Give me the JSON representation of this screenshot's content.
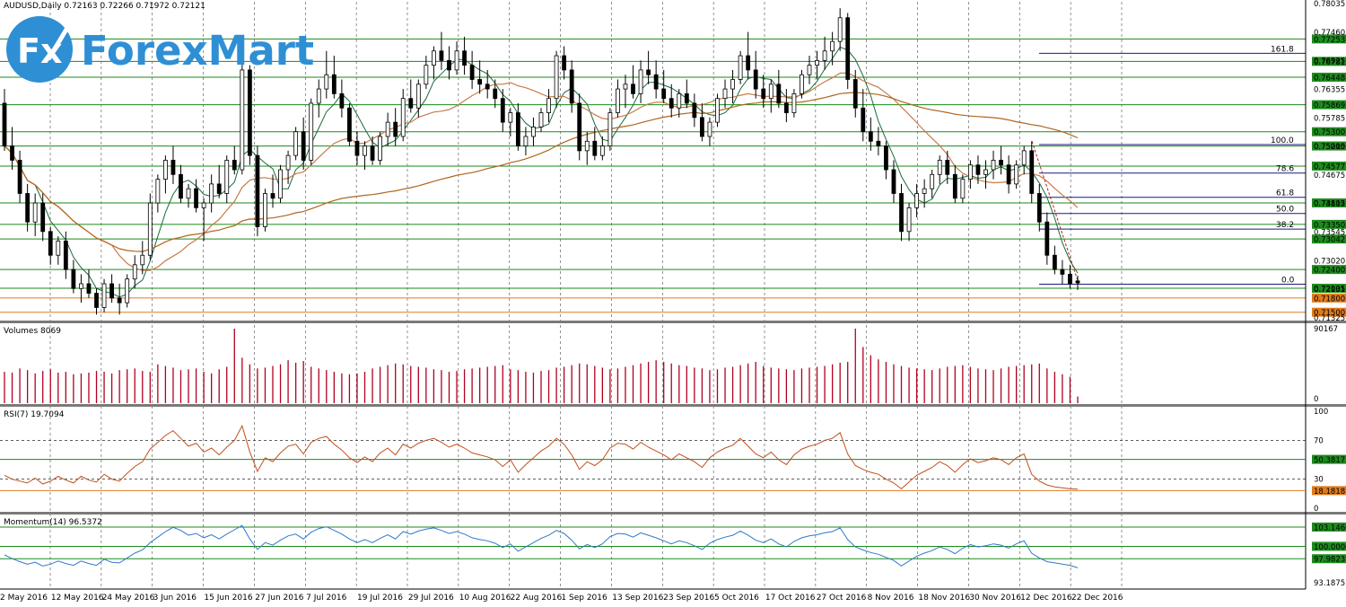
{
  "window": {
    "symbol_info": "AUDUSD,Daily  0.72163 0.72266 0.71972 0.72121"
  },
  "logo": {
    "mark_text": "Fx",
    "brand_text": "ForexMart",
    "color": "#2f8fd5"
  },
  "colors": {
    "level_line": "#1a8a1a",
    "level_tag": "#1e8b1e",
    "support_tag": "#e07b1e",
    "fib_line": "#1a1a80",
    "ma_fast": "#1a6a3a",
    "ma_mid": "#c87c4a",
    "ma_slow": "#b0651f",
    "rsi": "#c0501e",
    "momentum": "#2f7ac8",
    "volume": "#b0001e",
    "bull_candle": "#ffffff",
    "bear_candle": "#000000"
  },
  "x_axis": {
    "labels": [
      "2 May 2016",
      "12 May 2016",
      "24 May 2016",
      "3 Jun 2016",
      "15 Jun 2016",
      "27 Jun 2016",
      "7 Jul 2016",
      "19 Jul 2016",
      "29 Jul 2016",
      "10 Aug 2016",
      "22 Aug 2016",
      "1 Sep 2016",
      "13 Sep 2016",
      "23 Sep 2016",
      "5 Oct 2016",
      "17 Oct 2016",
      "27 Oct 2016",
      "8 Nov 2016",
      "18 Nov 2016",
      "30 Nov 2016",
      "12 Dec 2016",
      "22 Dec 2016"
    ]
  },
  "price_scale": {
    "labels": [
      "0.78035",
      "0.77460",
      "0.76925",
      "0.76355",
      "0.75785",
      "0.75215",
      "0.74675",
      "0.74115",
      "0.73545",
      "0.73020",
      "0.72131",
      "0.71325"
    ]
  },
  "levels": [
    {
      "label": "0.77253",
      "value": 0.77253,
      "tag": "green"
    },
    {
      "label": "0.76781",
      "value": 0.76781,
      "tag": "green"
    },
    {
      "label": "0.76448",
      "value": 0.76448,
      "tag": "green"
    },
    {
      "label": "0.75869",
      "value": 0.75869,
      "tag": "green"
    },
    {
      "label": "0.75300",
      "value": 0.753,
      "tag": "green"
    },
    {
      "label": "0.75000",
      "value": 0.75,
      "tag": "green"
    },
    {
      "label": "0.74577",
      "value": 0.74577,
      "tag": "green"
    },
    {
      "label": "0.73802",
      "value": 0.73802,
      "tag": "green"
    },
    {
      "label": "0.73350",
      "value": 0.7335,
      "tag": "green"
    },
    {
      "label": "0.73042",
      "value": 0.73042,
      "tag": "green"
    },
    {
      "label": "0.72400",
      "value": 0.724,
      "tag": "green"
    },
    {
      "label": "0.72005",
      "value": 0.72005,
      "tag": "green"
    },
    {
      "label": "0.71800",
      "value": 0.718,
      "tag": "orange"
    },
    {
      "label": "0.71500",
      "value": 0.715,
      "tag": "orange"
    }
  ],
  "fibonacci": [
    {
      "label": "161.8",
      "value": 0.7695
    },
    {
      "label": "100.0",
      "value": 0.7503
    },
    {
      "label": "78.6",
      "value": 0.7443
    },
    {
      "label": "61.8",
      "value": 0.7392
    },
    {
      "label": "50.0",
      "value": 0.7358
    },
    {
      "label": "38.2",
      "value": 0.7325
    },
    {
      "label": "0.0",
      "value": 0.7209
    }
  ],
  "volume_panel": {
    "title": "Volumes 8069",
    "scale_max": "90167",
    "scale_min": "0",
    "ymax": 90167
  },
  "rsi_panel": {
    "title": "RSI(7) 19.7094",
    "scale": [
      "100",
      "70",
      "30",
      "0"
    ],
    "levels": [
      {
        "label": "50.3817",
        "value": 50.3817
      },
      {
        "label": "18.1818",
        "value": 18.1818
      }
    ]
  },
  "momentum_panel": {
    "title": "Momentum(14) 96.5372",
    "scale_bottom": "93.1875",
    "ylim": [
      93.1875,
      104.6
    ],
    "levels": [
      {
        "label": "103.1460",
        "value": 103.146
      },
      {
        "label": "100.0000",
        "value": 100.0
      },
      {
        "label": "97.9823",
        "value": 97.9823
      }
    ]
  },
  "chart_data": {
    "type": "candlestick",
    "title": "AUDUSD,Daily",
    "ylim": [
      0.71325,
      0.78035
    ],
    "candles": [
      [
        0.759,
        0.762,
        0.749,
        0.75
      ],
      [
        0.75,
        0.754,
        0.745,
        0.747
      ],
      [
        0.747,
        0.749,
        0.738,
        0.74
      ],
      [
        0.74,
        0.742,
        0.732,
        0.734
      ],
      [
        0.734,
        0.74,
        0.731,
        0.738
      ],
      [
        0.738,
        0.74,
        0.73,
        0.732
      ],
      [
        0.732,
        0.733,
        0.725,
        0.727
      ],
      [
        0.727,
        0.731,
        0.725,
        0.73
      ],
      [
        0.73,
        0.732,
        0.722,
        0.724
      ],
      [
        0.724,
        0.726,
        0.719,
        0.72
      ],
      [
        0.72,
        0.723,
        0.717,
        0.721
      ],
      [
        0.721,
        0.724,
        0.718,
        0.719
      ],
      [
        0.719,
        0.72,
        0.7145,
        0.716
      ],
      [
        0.716,
        0.722,
        0.715,
        0.721
      ],
      [
        0.721,
        0.723,
        0.717,
        0.718
      ],
      [
        0.718,
        0.721,
        0.7145,
        0.717
      ],
      [
        0.717,
        0.723,
        0.716,
        0.722
      ],
      [
        0.722,
        0.727,
        0.72,
        0.725
      ],
      [
        0.725,
        0.73,
        0.723,
        0.727
      ],
      [
        0.727,
        0.74,
        0.726,
        0.738
      ],
      [
        0.738,
        0.744,
        0.736,
        0.743
      ],
      [
        0.743,
        0.748,
        0.74,
        0.747
      ],
      [
        0.747,
        0.75,
        0.742,
        0.744
      ],
      [
        0.744,
        0.746,
        0.738,
        0.739
      ],
      [
        0.739,
        0.742,
        0.737,
        0.741
      ],
      [
        0.741,
        0.743,
        0.736,
        0.737
      ],
      [
        0.737,
        0.739,
        0.73,
        0.738
      ],
      [
        0.738,
        0.744,
        0.736,
        0.742
      ],
      [
        0.742,
        0.746,
        0.739,
        0.74
      ],
      [
        0.74,
        0.748,
        0.738,
        0.747
      ],
      [
        0.747,
        0.75,
        0.744,
        0.745
      ],
      [
        0.745,
        0.768,
        0.744,
        0.766
      ],
      [
        0.766,
        0.767,
        0.746,
        0.748
      ],
      [
        0.748,
        0.75,
        0.731,
        0.733
      ],
      [
        0.733,
        0.741,
        0.732,
        0.74
      ],
      [
        0.74,
        0.744,
        0.737,
        0.739
      ],
      [
        0.739,
        0.746,
        0.738,
        0.745
      ],
      [
        0.745,
        0.749,
        0.742,
        0.748
      ],
      [
        0.748,
        0.754,
        0.747,
        0.753
      ],
      [
        0.753,
        0.756,
        0.745,
        0.747
      ],
      [
        0.747,
        0.76,
        0.746,
        0.759
      ],
      [
        0.759,
        0.764,
        0.756,
        0.762
      ],
      [
        0.762,
        0.77,
        0.76,
        0.765
      ],
      [
        0.765,
        0.769,
        0.76,
        0.761
      ],
      [
        0.761,
        0.764,
        0.756,
        0.758
      ],
      [
        0.758,
        0.759,
        0.75,
        0.751
      ],
      [
        0.751,
        0.753,
        0.746,
        0.748
      ],
      [
        0.748,
        0.751,
        0.745,
        0.75
      ],
      [
        0.75,
        0.752,
        0.746,
        0.747
      ],
      [
        0.747,
        0.753,
        0.746,
        0.752
      ],
      [
        0.752,
        0.757,
        0.75,
        0.755
      ],
      [
        0.755,
        0.758,
        0.75,
        0.752
      ],
      [
        0.752,
        0.762,
        0.751,
        0.76
      ],
      [
        0.76,
        0.764,
        0.757,
        0.758
      ],
      [
        0.758,
        0.764,
        0.756,
        0.763
      ],
      [
        0.763,
        0.769,
        0.762,
        0.767
      ],
      [
        0.767,
        0.771,
        0.764,
        0.77
      ],
      [
        0.77,
        0.774,
        0.766,
        0.768
      ],
      [
        0.768,
        0.771,
        0.764,
        0.766
      ],
      [
        0.766,
        0.772,
        0.765,
        0.77
      ],
      [
        0.77,
        0.773,
        0.765,
        0.767
      ],
      [
        0.767,
        0.77,
        0.762,
        0.764
      ],
      [
        0.764,
        0.768,
        0.761,
        0.763
      ],
      [
        0.763,
        0.766,
        0.76,
        0.762
      ],
      [
        0.762,
        0.764,
        0.758,
        0.76
      ],
      [
        0.76,
        0.762,
        0.753,
        0.755
      ],
      [
        0.755,
        0.758,
        0.752,
        0.757
      ],
      [
        0.757,
        0.759,
        0.749,
        0.75
      ],
      [
        0.75,
        0.754,
        0.748,
        0.752
      ],
      [
        0.752,
        0.756,
        0.75,
        0.754
      ],
      [
        0.754,
        0.758,
        0.753,
        0.757
      ],
      [
        0.757,
        0.762,
        0.755,
        0.76
      ],
      [
        0.76,
        0.77,
        0.758,
        0.769
      ],
      [
        0.769,
        0.771,
        0.764,
        0.766
      ],
      [
        0.766,
        0.768,
        0.757,
        0.759
      ],
      [
        0.759,
        0.761,
        0.747,
        0.749
      ],
      [
        0.749,
        0.753,
        0.746,
        0.751
      ],
      [
        0.751,
        0.754,
        0.747,
        0.748
      ],
      [
        0.748,
        0.752,
        0.747,
        0.75
      ],
      [
        0.75,
        0.758,
        0.749,
        0.757
      ],
      [
        0.757,
        0.764,
        0.756,
        0.762
      ],
      [
        0.762,
        0.765,
        0.758,
        0.763
      ],
      [
        0.763,
        0.767,
        0.76,
        0.761
      ],
      [
        0.761,
        0.768,
        0.759,
        0.766
      ],
      [
        0.766,
        0.77,
        0.763,
        0.765
      ],
      [
        0.765,
        0.768,
        0.76,
        0.762
      ],
      [
        0.762,
        0.766,
        0.759,
        0.76
      ],
      [
        0.76,
        0.763,
        0.756,
        0.758
      ],
      [
        0.758,
        0.762,
        0.756,
        0.761
      ],
      [
        0.761,
        0.764,
        0.758,
        0.759
      ],
      [
        0.759,
        0.761,
        0.754,
        0.756
      ],
      [
        0.756,
        0.759,
        0.751,
        0.752
      ],
      [
        0.752,
        0.756,
        0.75,
        0.755
      ],
      [
        0.755,
        0.761,
        0.754,
        0.76
      ],
      [
        0.76,
        0.764,
        0.758,
        0.762
      ],
      [
        0.762,
        0.766,
        0.759,
        0.764
      ],
      [
        0.764,
        0.77,
        0.763,
        0.769
      ],
      [
        0.769,
        0.774,
        0.764,
        0.766
      ],
      [
        0.766,
        0.77,
        0.76,
        0.762
      ],
      [
        0.762,
        0.765,
        0.758,
        0.76
      ],
      [
        0.76,
        0.764,
        0.757,
        0.763
      ],
      [
        0.763,
        0.766,
        0.758,
        0.759
      ],
      [
        0.759,
        0.762,
        0.755,
        0.757
      ],
      [
        0.757,
        0.762,
        0.756,
        0.761
      ],
      [
        0.761,
        0.766,
        0.76,
        0.765
      ],
      [
        0.765,
        0.769,
        0.763,
        0.767
      ],
      [
        0.767,
        0.77,
        0.764,
        0.768
      ],
      [
        0.768,
        0.773,
        0.766,
        0.77
      ],
      [
        0.77,
        0.774,
        0.767,
        0.772
      ],
      [
        0.772,
        0.779,
        0.77,
        0.777
      ],
      [
        0.777,
        0.778,
        0.762,
        0.764
      ],
      [
        0.764,
        0.766,
        0.756,
        0.758
      ],
      [
        0.758,
        0.762,
        0.751,
        0.753
      ],
      [
        0.753,
        0.756,
        0.749,
        0.751
      ],
      [
        0.751,
        0.754,
        0.748,
        0.75
      ],
      [
        0.75,
        0.751,
        0.743,
        0.745
      ],
      [
        0.745,
        0.747,
        0.738,
        0.74
      ],
      [
        0.74,
        0.742,
        0.73,
        0.732
      ],
      [
        0.732,
        0.738,
        0.73,
        0.737
      ],
      [
        0.737,
        0.742,
        0.735,
        0.74
      ],
      [
        0.74,
        0.743,
        0.737,
        0.741
      ],
      [
        0.741,
        0.745,
        0.739,
        0.744
      ],
      [
        0.744,
        0.748,
        0.742,
        0.747
      ],
      [
        0.747,
        0.749,
        0.742,
        0.744
      ],
      [
        0.744,
        0.746,
        0.738,
        0.739
      ],
      [
        0.739,
        0.744,
        0.738,
        0.743
      ],
      [
        0.743,
        0.747,
        0.741,
        0.746
      ],
      [
        0.746,
        0.748,
        0.742,
        0.744
      ],
      [
        0.744,
        0.747,
        0.741,
        0.745
      ],
      [
        0.745,
        0.749,
        0.743,
        0.747
      ],
      [
        0.747,
        0.75,
        0.744,
        0.746
      ],
      [
        0.746,
        0.748,
        0.74,
        0.742
      ],
      [
        0.742,
        0.747,
        0.741,
        0.746
      ],
      [
        0.746,
        0.75,
        0.744,
        0.749
      ],
      [
        0.749,
        0.751,
        0.738,
        0.74
      ],
      [
        0.74,
        0.742,
        0.732,
        0.734
      ],
      [
        0.734,
        0.736,
        0.725,
        0.727
      ],
      [
        0.727,
        0.729,
        0.723,
        0.724
      ],
      [
        0.724,
        0.726,
        0.721,
        0.723
      ],
      [
        0.723,
        0.725,
        0.72,
        0.721
      ],
      [
        0.7216,
        0.7227,
        0.7197,
        0.7212
      ]
    ],
    "volumes": [
      38000,
      37000,
      42000,
      40000,
      36000,
      39000,
      41000,
      37000,
      38000,
      35000,
      36000,
      37000,
      39000,
      38000,
      36000,
      40000,
      41000,
      42000,
      39000,
      38000,
      47000,
      45000,
      43000,
      40000,
      41000,
      42000,
      38000,
      36000,
      41000,
      44000,
      90167,
      55000,
      47000,
      42000,
      43000,
      45000,
      47000,
      52000,
      49000,
      51000,
      44000,
      42000,
      40000,
      38000,
      36000,
      35000,
      36000,
      38000,
      42000,
      44000,
      46000,
      48000,
      47000,
      45000,
      44000,
      43000,
      41000,
      40000,
      38000,
      39000,
      41000,
      42000,
      43000,
      44000,
      45000,
      46000,
      41000,
      40000,
      38000,
      37000,
      39000,
      40000,
      43000,
      44000,
      46000,
      48000,
      47000,
      45000,
      43000,
      41000,
      42000,
      44000,
      46000,
      48000,
      50000,
      52000,
      50000,
      48000,
      46000,
      45000,
      43000,
      42000,
      40000,
      41000,
      43000,
      44000,
      46000,
      48000,
      50000,
      45000,
      43000,
      42000,
      41000,
      40000,
      42000,
      43000,
      44000,
      45000,
      47000,
      49000,
      50000,
      90167,
      68000,
      58000,
      53000,
      50000,
      47000,
      45000,
      43000,
      42000,
      41000,
      40000,
      42000,
      44000,
      45000,
      46000,
      44000,
      42000,
      41000,
      40000,
      42000,
      44000,
      45000,
      46000,
      47000,
      48000,
      42000,
      38000,
      35000,
      32000,
      8069
    ],
    "rsi": [
      34,
      30,
      28,
      26,
      31,
      25,
      28,
      33,
      29,
      26,
      33,
      29,
      27,
      35,
      30,
      28,
      36,
      43,
      48,
      61,
      68,
      75,
      80,
      72,
      64,
      67,
      58,
      62,
      55,
      63,
      70,
      85,
      58,
      38,
      52,
      48,
      57,
      64,
      66,
      56,
      68,
      72,
      74,
      66,
      60,
      52,
      47,
      53,
      48,
      57,
      62,
      55,
      66,
      62,
      67,
      70,
      72,
      68,
      63,
      66,
      62,
      57,
      55,
      53,
      50,
      43,
      50,
      37,
      45,
      52,
      59,
      64,
      72,
      66,
      55,
      40,
      48,
      44,
      50,
      62,
      67,
      66,
      61,
      68,
      63,
      59,
      55,
      50,
      56,
      52,
      48,
      42,
      52,
      58,
      62,
      65,
      72,
      64,
      56,
      52,
      58,
      50,
      45,
      55,
      61,
      64,
      66,
      70,
      72,
      78,
      56,
      44,
      40,
      37,
      35,
      30,
      26,
      20,
      27,
      34,
      38,
      42,
      48,
      44,
      37,
      45,
      51,
      47,
      49,
      52,
      50,
      45,
      52,
      56,
      35,
      28,
      24,
      22,
      21,
      20,
      19.7
    ],
    "momentum": [
      98.6,
      98.0,
      97.5,
      97.1,
      97.4,
      96.8,
      97.1,
      97.6,
      97.2,
      96.9,
      97.6,
      97.2,
      96.9,
      97.9,
      97.4,
      97.3,
      98.1,
      98.9,
      99.4,
      100.6,
      101.5,
      102.4,
      103.1,
      102.6,
      101.8,
      102.1,
      101.4,
      101.9,
      101.2,
      102.0,
      102.7,
      103.4,
      101.2,
      99.5,
      100.6,
      100.2,
      101.0,
      101.7,
      102.0,
      101.2,
      102.3,
      102.9,
      103.2,
      102.6,
      102.0,
      101.2,
      100.6,
      101.1,
      100.6,
      101.3,
      101.9,
      101.2,
      102.4,
      102.0,
      102.5,
      102.8,
      103.0,
      102.6,
      102.1,
      102.4,
      102.0,
      101.4,
      101.1,
      100.9,
      100.5,
      99.8,
      100.4,
      99.2,
      99.9,
      100.6,
      101.3,
      101.8,
      102.6,
      102.1,
      101.0,
      99.6,
      100.3,
      99.8,
      100.4,
      101.6,
      102.1,
      102.0,
      101.5,
      102.2,
      101.8,
      101.4,
      100.9,
      100.4,
      100.9,
      100.6,
      100.1,
      99.5,
      100.5,
      101.1,
      101.5,
      101.8,
      102.5,
      101.8,
      101.0,
      100.6,
      101.2,
      100.4,
      99.9,
      100.8,
      101.4,
      101.7,
      101.9,
      102.2,
      102.4,
      103.0,
      101.1,
      99.9,
      99.4,
      99.0,
      98.7,
      98.2,
      97.7,
      96.8,
      97.6,
      98.4,
      98.9,
      99.3,
      99.9,
      99.5,
      98.8,
      99.7,
      100.3,
      99.9,
      100.1,
      100.4,
      100.2,
      99.7,
      100.4,
      100.9,
      98.9,
      98.1,
      97.5,
      97.3,
      97.1,
      96.9,
      96.5
    ]
  }
}
